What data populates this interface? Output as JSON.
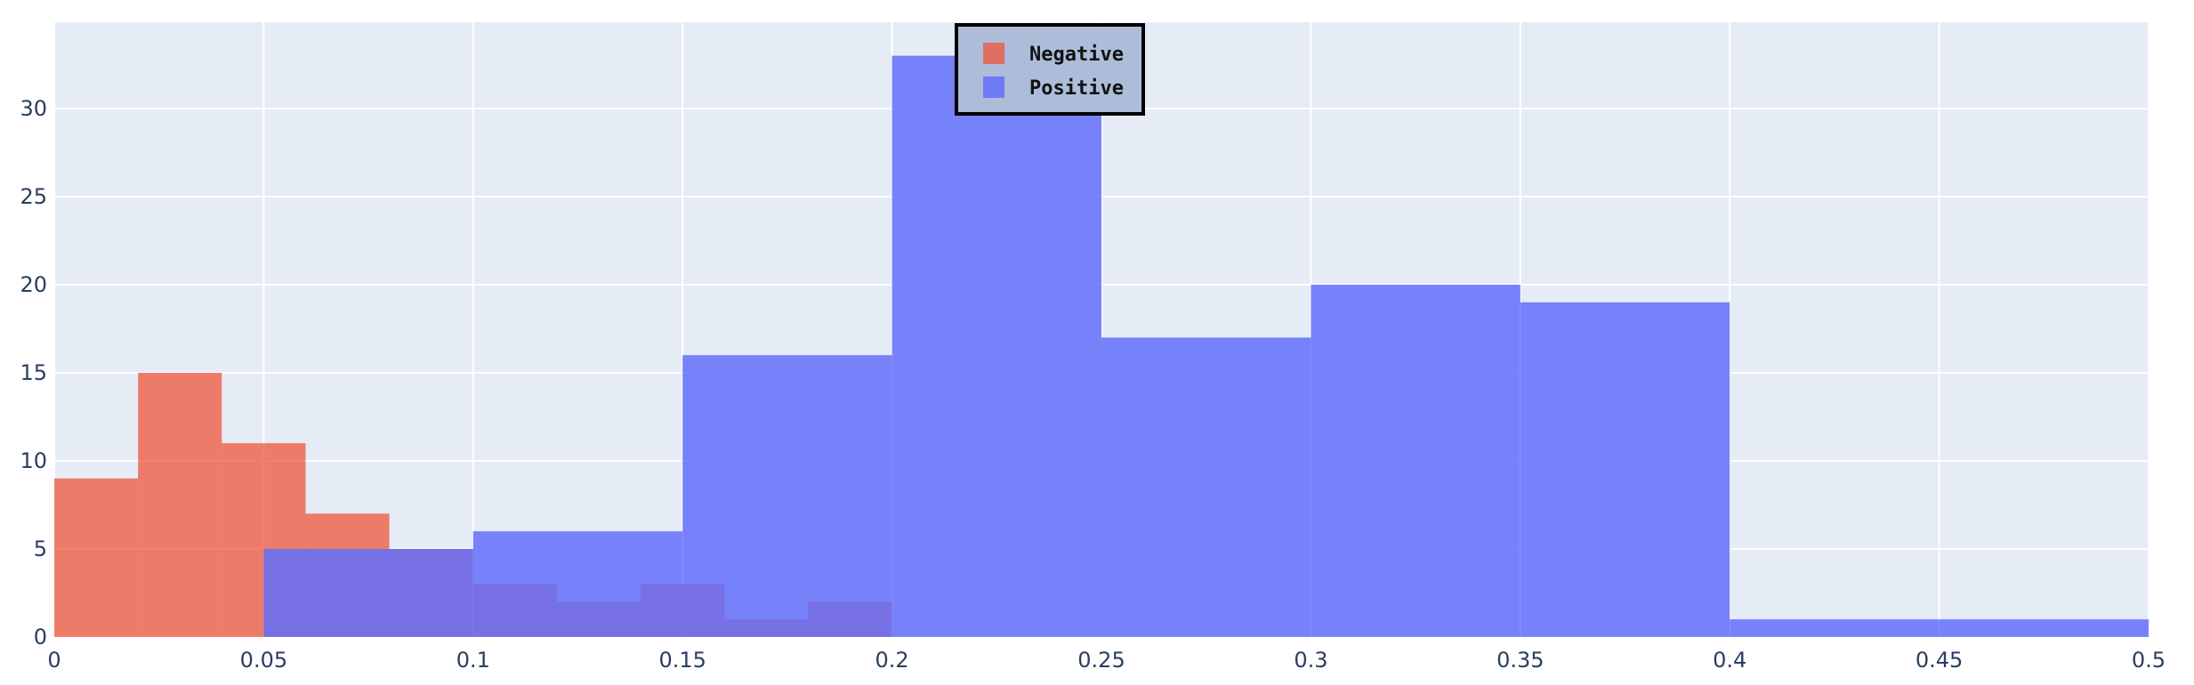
{
  "chart_data": {
    "type": "bar",
    "title": "",
    "xlabel": "",
    "ylabel": "",
    "xlim": [
      0,
      0.5
    ],
    "ylim": [
      0,
      34.9
    ],
    "grid": true,
    "barmode": "overlay",
    "legend_position": "top-center",
    "x_ticks": [
      "0",
      "0.05",
      "0.1",
      "0.15",
      "0.2",
      "0.25",
      "0.3",
      "0.35",
      "0.4",
      "0.45",
      "0.5"
    ],
    "y_ticks": [
      "0",
      "5",
      "10",
      "15",
      "20",
      "25",
      "30"
    ],
    "series": [
      {
        "name": "Negative",
        "color": "#EF553B",
        "opacity": 0.75,
        "bins": [
          {
            "start": 0.0,
            "end": 0.02,
            "count": 9
          },
          {
            "start": 0.02,
            "end": 0.04,
            "count": 15
          },
          {
            "start": 0.04,
            "end": 0.06,
            "count": 11
          },
          {
            "start": 0.06,
            "end": 0.08,
            "count": 7
          },
          {
            "start": 0.08,
            "end": 0.1,
            "count": 5
          },
          {
            "start": 0.1,
            "end": 0.12,
            "count": 3
          },
          {
            "start": 0.12,
            "end": 0.14,
            "count": 2
          },
          {
            "start": 0.14,
            "end": 0.16,
            "count": 3
          },
          {
            "start": 0.16,
            "end": 0.18,
            "count": 1
          },
          {
            "start": 0.18,
            "end": 0.2,
            "count": 2
          }
        ]
      },
      {
        "name": "Positive",
        "color": "#636EFA",
        "opacity": 0.85,
        "bins": [
          {
            "start": 0.05,
            "end": 0.1,
            "count": 5
          },
          {
            "start": 0.1,
            "end": 0.15,
            "count": 6
          },
          {
            "start": 0.15,
            "end": 0.2,
            "count": 16
          },
          {
            "start": 0.2,
            "end": 0.25,
            "count": 33
          },
          {
            "start": 0.25,
            "end": 0.3,
            "count": 17
          },
          {
            "start": 0.3,
            "end": 0.35,
            "count": 20
          },
          {
            "start": 0.35,
            "end": 0.4,
            "count": 19
          },
          {
            "start": 0.4,
            "end": 0.45,
            "count": 1
          },
          {
            "start": 0.45,
            "end": 0.5,
            "count": 1
          }
        ]
      }
    ]
  },
  "colors": {
    "plot_background": "#E5ECF6",
    "grid": "#FFFFFF",
    "tick_text": "#2a3f5f",
    "legend_background": "#ADBCD8",
    "legend_border": "#000000"
  }
}
